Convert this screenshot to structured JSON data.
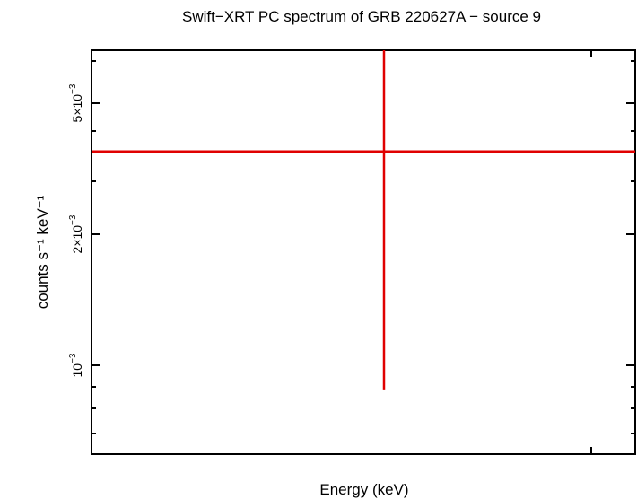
{
  "chart_data": {
    "type": "scatter",
    "title": "Swift−XRT PC spectrum of GRB 220627A − source 9",
    "xlabel": "Energy (keV)",
    "ylabel": "counts s⁻¹ keV⁻¹",
    "x_scale": "log",
    "y_scale": "log",
    "y_ticks": [
      {
        "value": 0.005,
        "mantissa": "5×10",
        "exponent": "−3"
      },
      {
        "value": 0.002,
        "mantissa": "2×10",
        "exponent": "−3"
      },
      {
        "value": 0.001,
        "mantissa": "10",
        "exponent": "−3"
      }
    ],
    "ylim": [
      0.00065,
      0.0055
    ],
    "series": [
      {
        "color": "#e00000",
        "points": [
          {
            "y": 0.0031,
            "y_low": 0.00088,
            "y_high": 0.0055
          }
        ]
      }
    ]
  }
}
